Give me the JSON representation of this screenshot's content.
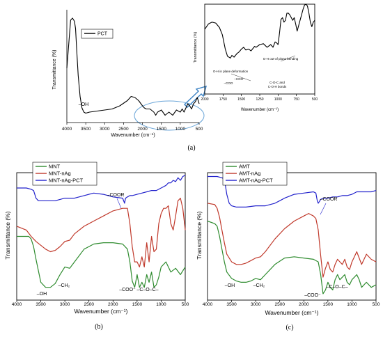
{
  "chart_data": [
    {
      "id": "a",
      "type": "line",
      "caption": "(a)",
      "xlabel": "Wavenumber (cm⁻¹)",
      "ylabel": "Transmittance (%)",
      "xlim": [
        4000,
        500
      ],
      "xticks": [
        4000,
        3500,
        3000,
        2500,
        2000,
        1500,
        1000,
        500
      ],
      "legend": "top-right",
      "grid": false,
      "annotations": [
        {
          "text": "–OH",
          "x": 3000,
          "y": 0.3
        }
      ],
      "series": [
        {
          "name": "PCT",
          "color": "#000000",
          "x": [
            4000,
            3950,
            3900,
            3850,
            3800,
            3770,
            3740,
            3700,
            3650,
            3600,
            3550,
            3500,
            3400,
            3200,
            3000,
            2800,
            2600,
            2400,
            2300,
            2200,
            2100,
            2000,
            1950,
            1900,
            1800,
            1700,
            1650,
            1600,
            1500,
            1400,
            1300,
            1200,
            1100,
            1000,
            950,
            900,
            850,
            800,
            750,
            700,
            650,
            600,
            550,
            500
          ],
          "y": [
            0.52,
            0.75,
            0.98,
            1.0,
            0.97,
            0.9,
            0.7,
            0.45,
            0.25,
            0.14,
            0.1,
            0.09,
            0.1,
            0.11,
            0.12,
            0.13,
            0.16,
            0.21,
            0.25,
            0.24,
            0.21,
            0.16,
            0.14,
            0.13,
            0.13,
            0.1,
            0.07,
            0.1,
            0.12,
            0.07,
            0.1,
            0.07,
            0.12,
            0.1,
            0.13,
            0.1,
            0.14,
            0.18,
            0.16,
            0.13,
            0.18,
            0.2,
            0.24,
            0.18
          ]
        }
      ]
    },
    {
      "id": "a-inset",
      "type": "line",
      "xlabel": "Wavenumber (cm⁻¹)",
      "ylabel": "Transmittance (%)",
      "xlim": [
        2000,
        500
      ],
      "xticks": [
        2000,
        1750,
        1500,
        1250,
        1000,
        750,
        500
      ],
      "annotations": [
        {
          "text": "O-H out-of plane bending",
          "x": 740,
          "y": 0.72
        },
        {
          "text": "O-H in plane deformation",
          "x": 1440,
          "y": 0.6
        },
        {
          "text": "–COO⁻",
          "x": 1460,
          "y": 0.49
        },
        {
          "text": "–COO",
          "x": 1660,
          "y": 0.5
        },
        {
          "text": "C-O-C and",
          "x": 1110,
          "y": 0.49
        },
        {
          "text": "C-O-H bonds",
          "x": 1110,
          "y": 0.43
        }
      ],
      "series": [
        {
          "name": "PCT",
          "color": "#000000",
          "x": [
            2000,
            1950,
            1900,
            1850,
            1800,
            1760,
            1720,
            1690,
            1650,
            1630,
            1600,
            1560,
            1530,
            1500,
            1470,
            1440,
            1400,
            1370,
            1350,
            1320,
            1300,
            1250,
            1200,
            1150,
            1100,
            1070,
            1040,
            1020,
            1000,
            980,
            960,
            940,
            920,
            900,
            880,
            860,
            840,
            800,
            780,
            760,
            740,
            720,
            700,
            680,
            660,
            640,
            620,
            600,
            580,
            560,
            540,
            520,
            500
          ],
          "y": [
            0.72,
            0.78,
            0.8,
            0.79,
            0.74,
            0.66,
            0.5,
            0.42,
            0.4,
            0.43,
            0.41,
            0.45,
            0.47,
            0.5,
            0.52,
            0.49,
            0.5,
            0.48,
            0.5,
            0.53,
            0.52,
            0.55,
            0.56,
            0.52,
            0.55,
            0.52,
            0.58,
            0.57,
            0.55,
            0.68,
            0.83,
            0.85,
            0.8,
            0.82,
            0.9,
            0.9,
            0.88,
            0.82,
            0.85,
            0.78,
            0.7,
            0.76,
            0.82,
            0.88,
            0.94,
            0.99,
            1.0,
            0.98,
            0.9,
            0.8,
            0.75,
            0.8,
            0.82
          ]
        }
      ]
    },
    {
      "id": "b",
      "type": "line",
      "caption": "(b)",
      "xlabel": "Wavenumber (cm⁻¹)",
      "ylabel": "Transmittance (%)",
      "xlim": [
        4000,
        500
      ],
      "xticks": [
        4000,
        3500,
        3000,
        2500,
        2000,
        1500,
        1000,
        500
      ],
      "legend": "top-left",
      "grid": false,
      "annotations": [
        {
          "text": "–COOR",
          "x": 1700,
          "y": 0.86
        },
        {
          "text": "–CH₂",
          "x": 2900,
          "y": 0.18
        },
        {
          "text": "–OH",
          "x": 3300,
          "y": 0.05
        },
        {
          "text": "–COO⁻",
          "x": 1500,
          "y": 0.1
        },
        {
          "text": "–C–O–C–",
          "x": 1100,
          "y": 0.1
        }
      ],
      "series": [
        {
          "name": "MNT",
          "color": "#2e8b2e",
          "x": [
            4000,
            3800,
            3750,
            3700,
            3650,
            3600,
            3500,
            3400,
            3300,
            3200,
            3100,
            3000,
            2900,
            2800,
            2600,
            2400,
            2200,
            2000,
            1800,
            1700,
            1650,
            1600,
            1550,
            1500,
            1450,
            1400,
            1350,
            1300,
            1250,
            1200,
            1150,
            1100,
            1050,
            1000,
            900,
            800,
            700,
            600,
            500
          ],
          "y": [
            0.5,
            0.5,
            0.5,
            0.48,
            0.42,
            0.32,
            0.14,
            0.1,
            0.1,
            0.13,
            0.2,
            0.26,
            0.25,
            0.3,
            0.4,
            0.44,
            0.45,
            0.45,
            0.44,
            0.4,
            0.3,
            0.15,
            0.1,
            0.2,
            0.1,
            0.14,
            0.1,
            0.2,
            0.14,
            0.22,
            0.1,
            0.12,
            0.18,
            0.26,
            0.3,
            0.22,
            0.25,
            0.2,
            0.26
          ]
        },
        {
          "name": "MNT-nAg",
          "color": "#c0392b",
          "x": [
            4000,
            3800,
            3700,
            3600,
            3500,
            3400,
            3300,
            3200,
            3100,
            3000,
            2900,
            2800,
            2600,
            2400,
            2200,
            2000,
            1800,
            1700,
            1650,
            1600,
            1550,
            1500,
            1450,
            1400,
            1350,
            1300,
            1250,
            1200,
            1150,
            1100,
            1050,
            1000,
            950,
            900,
            850,
            800,
            750,
            700,
            650,
            600,
            550,
            500
          ],
          "y": [
            0.58,
            0.55,
            0.5,
            0.46,
            0.43,
            0.4,
            0.38,
            0.39,
            0.42,
            0.46,
            0.47,
            0.52,
            0.58,
            0.62,
            0.66,
            0.7,
            0.72,
            0.72,
            0.6,
            0.42,
            0.3,
            0.3,
            0.26,
            0.34,
            0.26,
            0.45,
            0.3,
            0.5,
            0.38,
            0.4,
            0.6,
            0.68,
            0.72,
            0.72,
            0.74,
            0.6,
            0.55,
            0.66,
            0.78,
            0.8,
            0.72,
            0.55
          ]
        },
        {
          "name": "MNT-nAg-PCT",
          "color": "#2222cc",
          "x": [
            4000,
            3800,
            3700,
            3650,
            3600,
            3550,
            3500,
            3400,
            3200,
            3000,
            2800,
            2600,
            2400,
            2200,
            2000,
            1800,
            1760,
            1740,
            1700,
            1650,
            1600,
            1500,
            1400,
            1300,
            1200,
            1100,
            1000,
            900,
            850,
            800,
            750,
            700,
            650,
            600,
            550,
            500
          ],
          "y": [
            0.88,
            0.88,
            0.87,
            0.86,
            0.8,
            0.78,
            0.78,
            0.78,
            0.78,
            0.8,
            0.8,
            0.82,
            0.84,
            0.83,
            0.81,
            0.8,
            0.76,
            0.8,
            0.81,
            0.82,
            0.82,
            0.83,
            0.84,
            0.85,
            0.86,
            0.86,
            0.88,
            0.9,
            0.92,
            0.92,
            0.94,
            0.93,
            0.96,
            0.94,
            0.97,
            0.98
          ]
        }
      ]
    },
    {
      "id": "c",
      "type": "line",
      "caption": "(c)",
      "xlabel": "Wavenumber (cm⁻¹)",
      "ylabel": "Transmittance (%)",
      "xlim": [
        4000,
        500
      ],
      "xticks": [
        4000,
        3500,
        3000,
        2500,
        2000,
        1500,
        1000,
        500
      ],
      "legend": "top-left",
      "grid": false,
      "annotations": [
        {
          "text": "–COOR",
          "x": 1550,
          "y": 0.78
        },
        {
          "text": "–OH",
          "x": 3300,
          "y": 0.12
        },
        {
          "text": "–CH₂",
          "x": 2800,
          "y": 0.1
        },
        {
          "text": "–COO⁻",
          "x": 1600,
          "y": 0.02
        },
        {
          "text": "–C–O–C–",
          "x": 1150,
          "y": 0.08
        }
      ],
      "series": [
        {
          "name": "AMT",
          "color": "#2e8b2e",
          "x": [
            4000,
            3850,
            3800,
            3750,
            3700,
            3650,
            3600,
            3500,
            3400,
            3300,
            3200,
            3100,
            3000,
            2900,
            2800,
            2600,
            2400,
            2200,
            2000,
            1800,
            1700,
            1650,
            1600,
            1550,
            1500,
            1450,
            1400,
            1350,
            1300,
            1250,
            1200,
            1150,
            1100,
            1050,
            1000,
            950,
            900,
            850,
            800,
            700,
            600,
            500
          ],
          "y": [
            0.62,
            0.6,
            0.58,
            0.5,
            0.4,
            0.3,
            0.22,
            0.17,
            0.15,
            0.14,
            0.14,
            0.15,
            0.17,
            0.16,
            0.2,
            0.28,
            0.33,
            0.34,
            0.33,
            0.32,
            0.3,
            0.2,
            0.05,
            0.08,
            0.14,
            0.1,
            0.08,
            0.16,
            0.2,
            0.16,
            0.18,
            0.2,
            0.14,
            0.12,
            0.16,
            0.18,
            0.2,
            0.16,
            0.1,
            0.14,
            0.1,
            0.12
          ]
        },
        {
          "name": "AMT-nAg",
          "color": "#c0392b",
          "x": [
            4000,
            3850,
            3800,
            3750,
            3700,
            3650,
            3600,
            3500,
            3400,
            3300,
            3200,
            3100,
            3000,
            2900,
            2800,
            2600,
            2400,
            2200,
            2000,
            1900,
            1800,
            1750,
            1700,
            1650,
            1600,
            1550,
            1500,
            1450,
            1400,
            1350,
            1300,
            1250,
            1200,
            1150,
            1100,
            1050,
            1000,
            950,
            900,
            850,
            800,
            700,
            600,
            500
          ],
          "y": [
            0.76,
            0.75,
            0.72,
            0.65,
            0.55,
            0.45,
            0.36,
            0.3,
            0.28,
            0.28,
            0.29,
            0.31,
            0.33,
            0.34,
            0.38,
            0.48,
            0.56,
            0.62,
            0.66,
            0.68,
            0.66,
            0.64,
            0.55,
            0.35,
            0.18,
            0.25,
            0.3,
            0.24,
            0.22,
            0.28,
            0.32,
            0.3,
            0.28,
            0.32,
            0.26,
            0.24,
            0.3,
            0.34,
            0.38,
            0.33,
            0.28,
            0.36,
            0.32,
            0.3
          ]
        },
        {
          "name": "AMT-nAg-PCT",
          "color": "#2222cc",
          "x": [
            4000,
            3800,
            3700,
            3650,
            3600,
            3550,
            3500,
            3400,
            3200,
            3000,
            2800,
            2600,
            2500,
            2400,
            2200,
            2000,
            1800,
            1750,
            1720,
            1700,
            1650,
            1600,
            1500,
            1400,
            1300,
            1200,
            1100,
            1000,
            900,
            800,
            700,
            600,
            500
          ],
          "y": [
            0.97,
            0.97,
            0.96,
            0.95,
            0.83,
            0.76,
            0.74,
            0.73,
            0.73,
            0.74,
            0.74,
            0.76,
            0.78,
            0.8,
            0.83,
            0.84,
            0.85,
            0.84,
            0.78,
            0.76,
            0.79,
            0.8,
            0.8,
            0.81,
            0.81,
            0.82,
            0.82,
            0.83,
            0.85,
            0.85,
            0.85,
            0.85,
            0.86
          ]
        }
      ]
    }
  ]
}
